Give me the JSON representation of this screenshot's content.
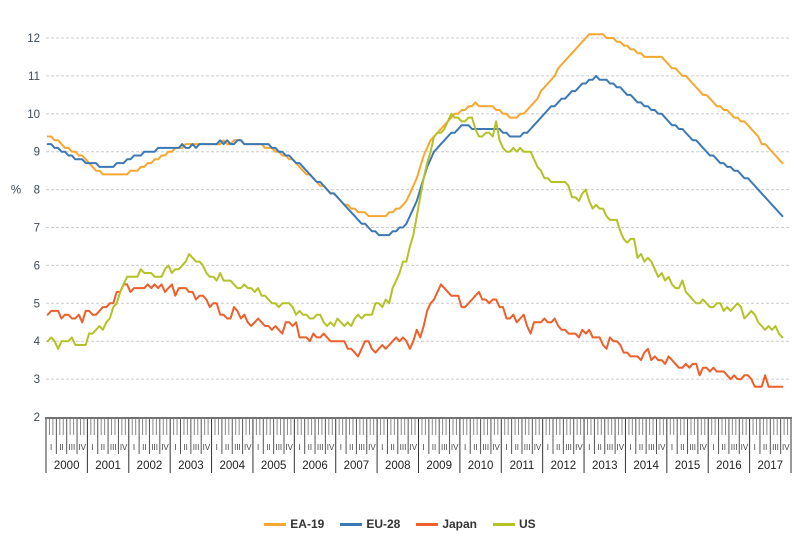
{
  "chart_data": {
    "type": "line",
    "title": "",
    "ylabel": "%",
    "ylim": [
      2,
      12
    ],
    "y_ticks": [
      2,
      3,
      4,
      5,
      6,
      7,
      8,
      9,
      10,
      11,
      12
    ],
    "grid": "horizontal-dashed",
    "legend_position": "bottom-center",
    "x_axis": {
      "unit": "month",
      "start": "2000-01",
      "end": "2017-10",
      "years": [
        "2000",
        "2001",
        "2002",
        "2003",
        "2004",
        "2005",
        "2006",
        "2007",
        "2008",
        "2009",
        "2010",
        "2011",
        "2012",
        "2013",
        "2014",
        "2015",
        "2016",
        "2017"
      ],
      "quarter_labels": [
        "I",
        "II",
        "III",
        "IV"
      ]
    },
    "series": [
      {
        "name": "EA-19",
        "color": "#F7A730",
        "values": [
          9.4,
          9.4,
          9.3,
          9.3,
          9.2,
          9.1,
          9.1,
          9.0,
          9.0,
          8.9,
          8.9,
          8.8,
          8.7,
          8.6,
          8.5,
          8.5,
          8.4,
          8.4,
          8.4,
          8.4,
          8.4,
          8.4,
          8.4,
          8.4,
          8.5,
          8.5,
          8.5,
          8.6,
          8.6,
          8.7,
          8.7,
          8.8,
          8.8,
          8.9,
          8.9,
          9.0,
          9.0,
          9.1,
          9.1,
          9.1,
          9.2,
          9.2,
          9.2,
          9.2,
          9.2,
          9.2,
          9.2,
          9.2,
          9.2,
          9.2,
          9.2,
          9.3,
          9.2,
          9.2,
          9.3,
          9.3,
          9.3,
          9.2,
          9.2,
          9.2,
          9.2,
          9.2,
          9.2,
          9.1,
          9.1,
          9.1,
          9.0,
          9.0,
          8.9,
          8.9,
          8.8,
          8.8,
          8.7,
          8.6,
          8.5,
          8.4,
          8.4,
          8.3,
          8.2,
          8.1,
          8.1,
          8.0,
          7.9,
          7.9,
          7.8,
          7.7,
          7.6,
          7.6,
          7.5,
          7.5,
          7.4,
          7.4,
          7.4,
          7.3,
          7.3,
          7.3,
          7.3,
          7.3,
          7.3,
          7.4,
          7.4,
          7.5,
          7.5,
          7.6,
          7.7,
          7.9,
          8.1,
          8.3,
          8.6,
          8.9,
          9.1,
          9.3,
          9.4,
          9.5,
          9.6,
          9.7,
          9.8,
          9.9,
          10.0,
          10.0,
          10.1,
          10.1,
          10.2,
          10.2,
          10.3,
          10.2,
          10.2,
          10.2,
          10.2,
          10.2,
          10.1,
          10.1,
          10.0,
          10.0,
          9.9,
          9.9,
          9.9,
          10.0,
          10.0,
          10.1,
          10.2,
          10.3,
          10.4,
          10.6,
          10.7,
          10.8,
          10.9,
          11.0,
          11.2,
          11.3,
          11.4,
          11.5,
          11.6,
          11.7,
          11.8,
          11.9,
          12.0,
          12.1,
          12.1,
          12.1,
          12.1,
          12.1,
          12.0,
          12.0,
          12.0,
          11.9,
          11.9,
          11.8,
          11.8,
          11.7,
          11.7,
          11.6,
          11.6,
          11.5,
          11.5,
          11.5,
          11.5,
          11.5,
          11.5,
          11.4,
          11.3,
          11.2,
          11.2,
          11.1,
          11.0,
          11.0,
          10.9,
          10.8,
          10.7,
          10.6,
          10.5,
          10.5,
          10.4,
          10.3,
          10.2,
          10.2,
          10.1,
          10.1,
          10.0,
          9.9,
          9.9,
          9.8,
          9.8,
          9.7,
          9.6,
          9.5,
          9.4,
          9.2,
          9.2,
          9.1,
          9.0,
          8.9,
          8.8,
          8.7
        ]
      },
      {
        "name": "EU-28",
        "color": "#3D78B6",
        "values": [
          9.2,
          9.2,
          9.1,
          9.1,
          9.0,
          9.0,
          8.9,
          8.9,
          8.8,
          8.8,
          8.8,
          8.7,
          8.7,
          8.7,
          8.7,
          8.6,
          8.6,
          8.6,
          8.6,
          8.6,
          8.7,
          8.7,
          8.7,
          8.8,
          8.8,
          8.9,
          8.9,
          8.9,
          9.0,
          9.0,
          9.0,
          9.0,
          9.1,
          9.1,
          9.1,
          9.1,
          9.1,
          9.1,
          9.1,
          9.2,
          9.1,
          9.1,
          9.2,
          9.1,
          9.2,
          9.2,
          9.2,
          9.2,
          9.2,
          9.2,
          9.3,
          9.2,
          9.3,
          9.2,
          9.2,
          9.3,
          9.3,
          9.2,
          9.2,
          9.2,
          9.2,
          9.2,
          9.2,
          9.2,
          9.2,
          9.1,
          9.1,
          9.0,
          9.0,
          8.9,
          8.9,
          8.8,
          8.7,
          8.7,
          8.6,
          8.5,
          8.4,
          8.3,
          8.2,
          8.2,
          8.1,
          8.0,
          7.9,
          7.9,
          7.8,
          7.7,
          7.6,
          7.5,
          7.4,
          7.3,
          7.2,
          7.1,
          7.1,
          7.0,
          6.9,
          6.9,
          6.8,
          6.8,
          6.8,
          6.8,
          6.9,
          6.9,
          7.0,
          7.0,
          7.1,
          7.3,
          7.5,
          7.7,
          8.0,
          8.3,
          8.6,
          8.8,
          9.0,
          9.1,
          9.2,
          9.3,
          9.4,
          9.5,
          9.5,
          9.6,
          9.7,
          9.7,
          9.7,
          9.6,
          9.6,
          9.6,
          9.6,
          9.6,
          9.6,
          9.6,
          9.6,
          9.6,
          9.5,
          9.5,
          9.4,
          9.4,
          9.4,
          9.4,
          9.5,
          9.5,
          9.6,
          9.7,
          9.8,
          9.9,
          10.0,
          10.1,
          10.2,
          10.2,
          10.3,
          10.4,
          10.4,
          10.5,
          10.6,
          10.6,
          10.7,
          10.8,
          10.8,
          10.9,
          10.9,
          11.0,
          10.9,
          10.9,
          10.9,
          10.8,
          10.8,
          10.7,
          10.7,
          10.6,
          10.5,
          10.5,
          10.4,
          10.3,
          10.3,
          10.2,
          10.2,
          10.1,
          10.1,
          10.0,
          10.0,
          9.9,
          9.8,
          9.7,
          9.7,
          9.6,
          9.6,
          9.5,
          9.4,
          9.3,
          9.3,
          9.2,
          9.1,
          9.0,
          8.9,
          8.9,
          8.8,
          8.7,
          8.7,
          8.6,
          8.6,
          8.5,
          8.5,
          8.4,
          8.3,
          8.3,
          8.2,
          8.1,
          8.0,
          7.9,
          7.8,
          7.7,
          7.6,
          7.5,
          7.4,
          7.3
        ]
      },
      {
        "name": "Japan",
        "color": "#ED5F2B",
        "values": [
          4.7,
          4.8,
          4.8,
          4.8,
          4.6,
          4.7,
          4.7,
          4.6,
          4.6,
          4.7,
          4.5,
          4.8,
          4.8,
          4.7,
          4.7,
          4.8,
          4.9,
          4.9,
          5.0,
          5.0,
          5.3,
          5.3,
          5.5,
          5.5,
          5.3,
          5.4,
          5.4,
          5.4,
          5.4,
          5.5,
          5.4,
          5.5,
          5.4,
          5.5,
          5.3,
          5.4,
          5.5,
          5.2,
          5.4,
          5.4,
          5.4,
          5.3,
          5.3,
          5.1,
          5.2,
          5.2,
          5.1,
          4.9,
          5.0,
          5.0,
          4.7,
          4.7,
          4.6,
          4.6,
          4.9,
          4.8,
          4.6,
          4.7,
          4.5,
          4.4,
          4.5,
          4.6,
          4.5,
          4.4,
          4.4,
          4.3,
          4.4,
          4.3,
          4.2,
          4.5,
          4.5,
          4.4,
          4.5,
          4.1,
          4.1,
          4.1,
          4.0,
          4.2,
          4.1,
          4.1,
          4.2,
          4.1,
          4.0,
          4.0,
          4.0,
          4.0,
          4.0,
          3.8,
          3.8,
          3.7,
          3.6,
          3.8,
          4.0,
          4.0,
          3.8,
          3.7,
          3.8,
          3.9,
          3.8,
          3.9,
          4.0,
          4.1,
          4.0,
          4.1,
          4.0,
          3.8,
          4.0,
          4.3,
          4.1,
          4.4,
          4.8,
          5.0,
          5.1,
          5.3,
          5.5,
          5.4,
          5.3,
          5.2,
          5.2,
          5.2,
          4.9,
          4.9,
          5.0,
          5.1,
          5.2,
          5.3,
          5.1,
          5.1,
          5.0,
          5.1,
          5.1,
          4.9,
          4.9,
          4.6,
          4.6,
          4.7,
          4.5,
          4.6,
          4.7,
          4.4,
          4.2,
          4.5,
          4.5,
          4.5,
          4.6,
          4.5,
          4.5,
          4.6,
          4.4,
          4.3,
          4.3,
          4.2,
          4.2,
          4.2,
          4.1,
          4.3,
          4.2,
          4.3,
          4.1,
          4.1,
          4.1,
          3.9,
          3.8,
          4.1,
          4.0,
          4.0,
          3.9,
          3.7,
          3.7,
          3.6,
          3.6,
          3.6,
          3.5,
          3.7,
          3.8,
          3.5,
          3.6,
          3.5,
          3.5,
          3.4,
          3.6,
          3.5,
          3.4,
          3.3,
          3.3,
          3.4,
          3.3,
          3.4,
          3.4,
          3.1,
          3.3,
          3.3,
          3.2,
          3.3,
          3.2,
          3.2,
          3.2,
          3.1,
          3.0,
          3.1,
          3.0,
          3.0,
          3.1,
          3.1,
          3.0,
          2.8,
          2.8,
          2.8,
          3.1,
          2.8,
          2.8,
          2.8,
          2.8,
          2.8
        ]
      },
      {
        "name": "US",
        "color": "#B3C226",
        "values": [
          4.0,
          4.1,
          4.0,
          3.8,
          4.0,
          4.0,
          4.0,
          4.1,
          3.9,
          3.9,
          3.9,
          3.9,
          4.2,
          4.2,
          4.3,
          4.4,
          4.3,
          4.5,
          4.6,
          4.9,
          5.0,
          5.3,
          5.5,
          5.7,
          5.7,
          5.7,
          5.7,
          5.9,
          5.8,
          5.8,
          5.8,
          5.7,
          5.7,
          5.7,
          5.9,
          6.0,
          5.8,
          5.9,
          5.9,
          6.0,
          6.1,
          6.3,
          6.2,
          6.1,
          6.1,
          6.0,
          5.8,
          5.7,
          5.7,
          5.6,
          5.8,
          5.6,
          5.6,
          5.6,
          5.5,
          5.4,
          5.4,
          5.5,
          5.4,
          5.4,
          5.3,
          5.4,
          5.2,
          5.2,
          5.1,
          5.0,
          5.0,
          4.9,
          5.0,
          5.0,
          5.0,
          4.9,
          4.7,
          4.8,
          4.7,
          4.7,
          4.6,
          4.6,
          4.7,
          4.7,
          4.5,
          4.4,
          4.5,
          4.4,
          4.6,
          4.5,
          4.4,
          4.5,
          4.4,
          4.6,
          4.7,
          4.6,
          4.7,
          4.7,
          4.7,
          5.0,
          5.0,
          4.9,
          5.1,
          5.0,
          5.4,
          5.6,
          5.8,
          6.1,
          6.1,
          6.5,
          6.8,
          7.3,
          7.8,
          8.3,
          8.7,
          9.0,
          9.4,
          9.5,
          9.5,
          9.6,
          9.8,
          10.0,
          9.9,
          9.9,
          9.8,
          9.8,
          9.9,
          9.9,
          9.6,
          9.4,
          9.4,
          9.5,
          9.5,
          9.4,
          9.8,
          9.3,
          9.1,
          9.0,
          9.0,
          9.1,
          9.0,
          9.1,
          9.0,
          9.0,
          9.0,
          8.8,
          8.6,
          8.5,
          8.3,
          8.3,
          8.2,
          8.2,
          8.2,
          8.2,
          8.2,
          8.1,
          7.8,
          7.8,
          7.7,
          7.9,
          8.0,
          7.7,
          7.5,
          7.6,
          7.5,
          7.5,
          7.3,
          7.2,
          7.2,
          7.2,
          6.9,
          6.7,
          6.6,
          6.7,
          6.7,
          6.2,
          6.3,
          6.1,
          6.2,
          6.1,
          5.9,
          5.7,
          5.8,
          5.6,
          5.7,
          5.5,
          5.4,
          5.4,
          5.6,
          5.3,
          5.2,
          5.1,
          5.0,
          5.0,
          5.1,
          5.0,
          4.9,
          4.9,
          5.0,
          5.0,
          4.8,
          4.9,
          4.8,
          4.9,
          5.0,
          4.9,
          4.6,
          4.7,
          4.8,
          4.7,
          4.5,
          4.4,
          4.3,
          4.4,
          4.3,
          4.4,
          4.2,
          4.1
        ]
      }
    ]
  }
}
